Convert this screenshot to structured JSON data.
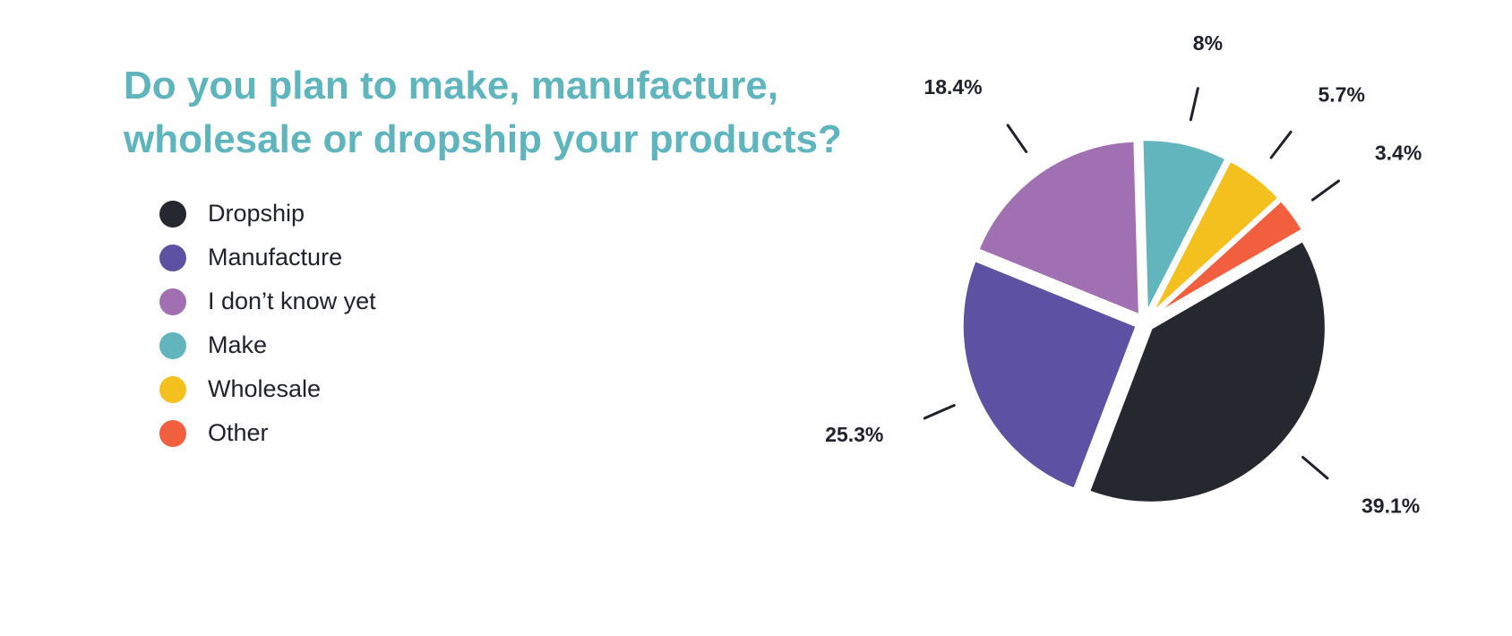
{
  "chart_data": {
    "type": "pie",
    "title": "Do you plan to make, manufacture, wholesale or dropship your products?",
    "legend_position": "left",
    "slices": [
      {
        "name": "Dropship",
        "value": 39.1,
        "label": "39.1%",
        "color": "#262830"
      },
      {
        "name": "Manufacture",
        "value": 25.3,
        "label": "25.3%",
        "color": "#5c51a3"
      },
      {
        "name": "I don’t know yet",
        "value": 18.4,
        "label": "18.4%",
        "color": "#a070b2"
      },
      {
        "name": "Make",
        "value": 8,
        "label": "8%",
        "color": "#62b5bd"
      },
      {
        "name": "Wholesale",
        "value": 5.7,
        "label": "5.7%",
        "color": "#f4c01d"
      },
      {
        "name": "Other",
        "value": 3.4,
        "label": "3.4%",
        "color": "#f15f3f"
      }
    ]
  }
}
